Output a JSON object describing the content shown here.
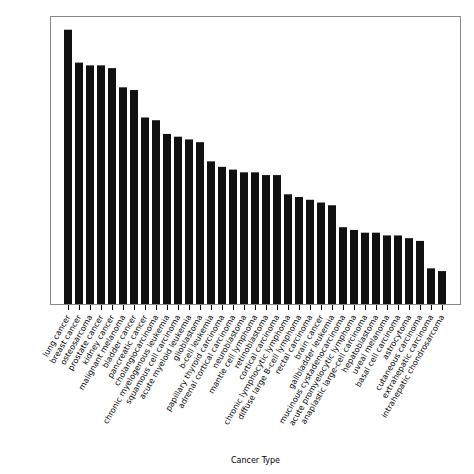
{
  "chart_data": {
    "type": "bar",
    "xlabel": "Cancer Type",
    "categories": [
      "lung cancer",
      "breast cancer",
      "osteosarcoma",
      "prostate cancer",
      "kidney cancer",
      "malignant melanoma",
      "bladder cancer",
      "pancreatic cancer",
      "cholangiocarcinoma",
      "chronic myelogenous leukemia",
      "squamous cell carcinoma",
      "acute myeloid leukemia",
      "glioblastoma",
      "b-cell leukemia",
      "papillary thyroid carcinoma",
      "adrenal cortical carcinoma",
      "neuroblastoma",
      "mantle cell lymphoma",
      "retinoblastoma",
      "cortical carcinoma",
      "chronic lymphocytic lymphoma",
      "diffuse large B-cell lymphoma",
      "rectal carcinoma",
      "brain cancer",
      "gallbladder leukemia",
      "mucinous cystadenocarcinoma",
      "acute promyelocytic lymphoma",
      "anaplastic large-cell carcinoma",
      "hepatoblastoma",
      "uveal melanoma",
      "basal cell carcinoma",
      "astrocytoma",
      "cutaneous carcinoma",
      "extrahepatic carcinoma",
      "intrahepatic chondrosarcoma"
    ],
    "values": [
      100,
      88,
      87,
      87,
      86,
      79,
      78,
      68,
      67,
      62,
      61,
      60,
      59,
      52,
      50,
      49,
      48,
      48,
      47,
      47,
      40,
      39,
      38,
      37,
      36,
      28,
      27,
      26,
      26,
      25,
      25,
      24,
      23,
      13,
      12
    ],
    "color": "#111111",
    "ylim": [
      0,
      105
    ],
    "tick_labels": "x",
    "grid": false
  }
}
